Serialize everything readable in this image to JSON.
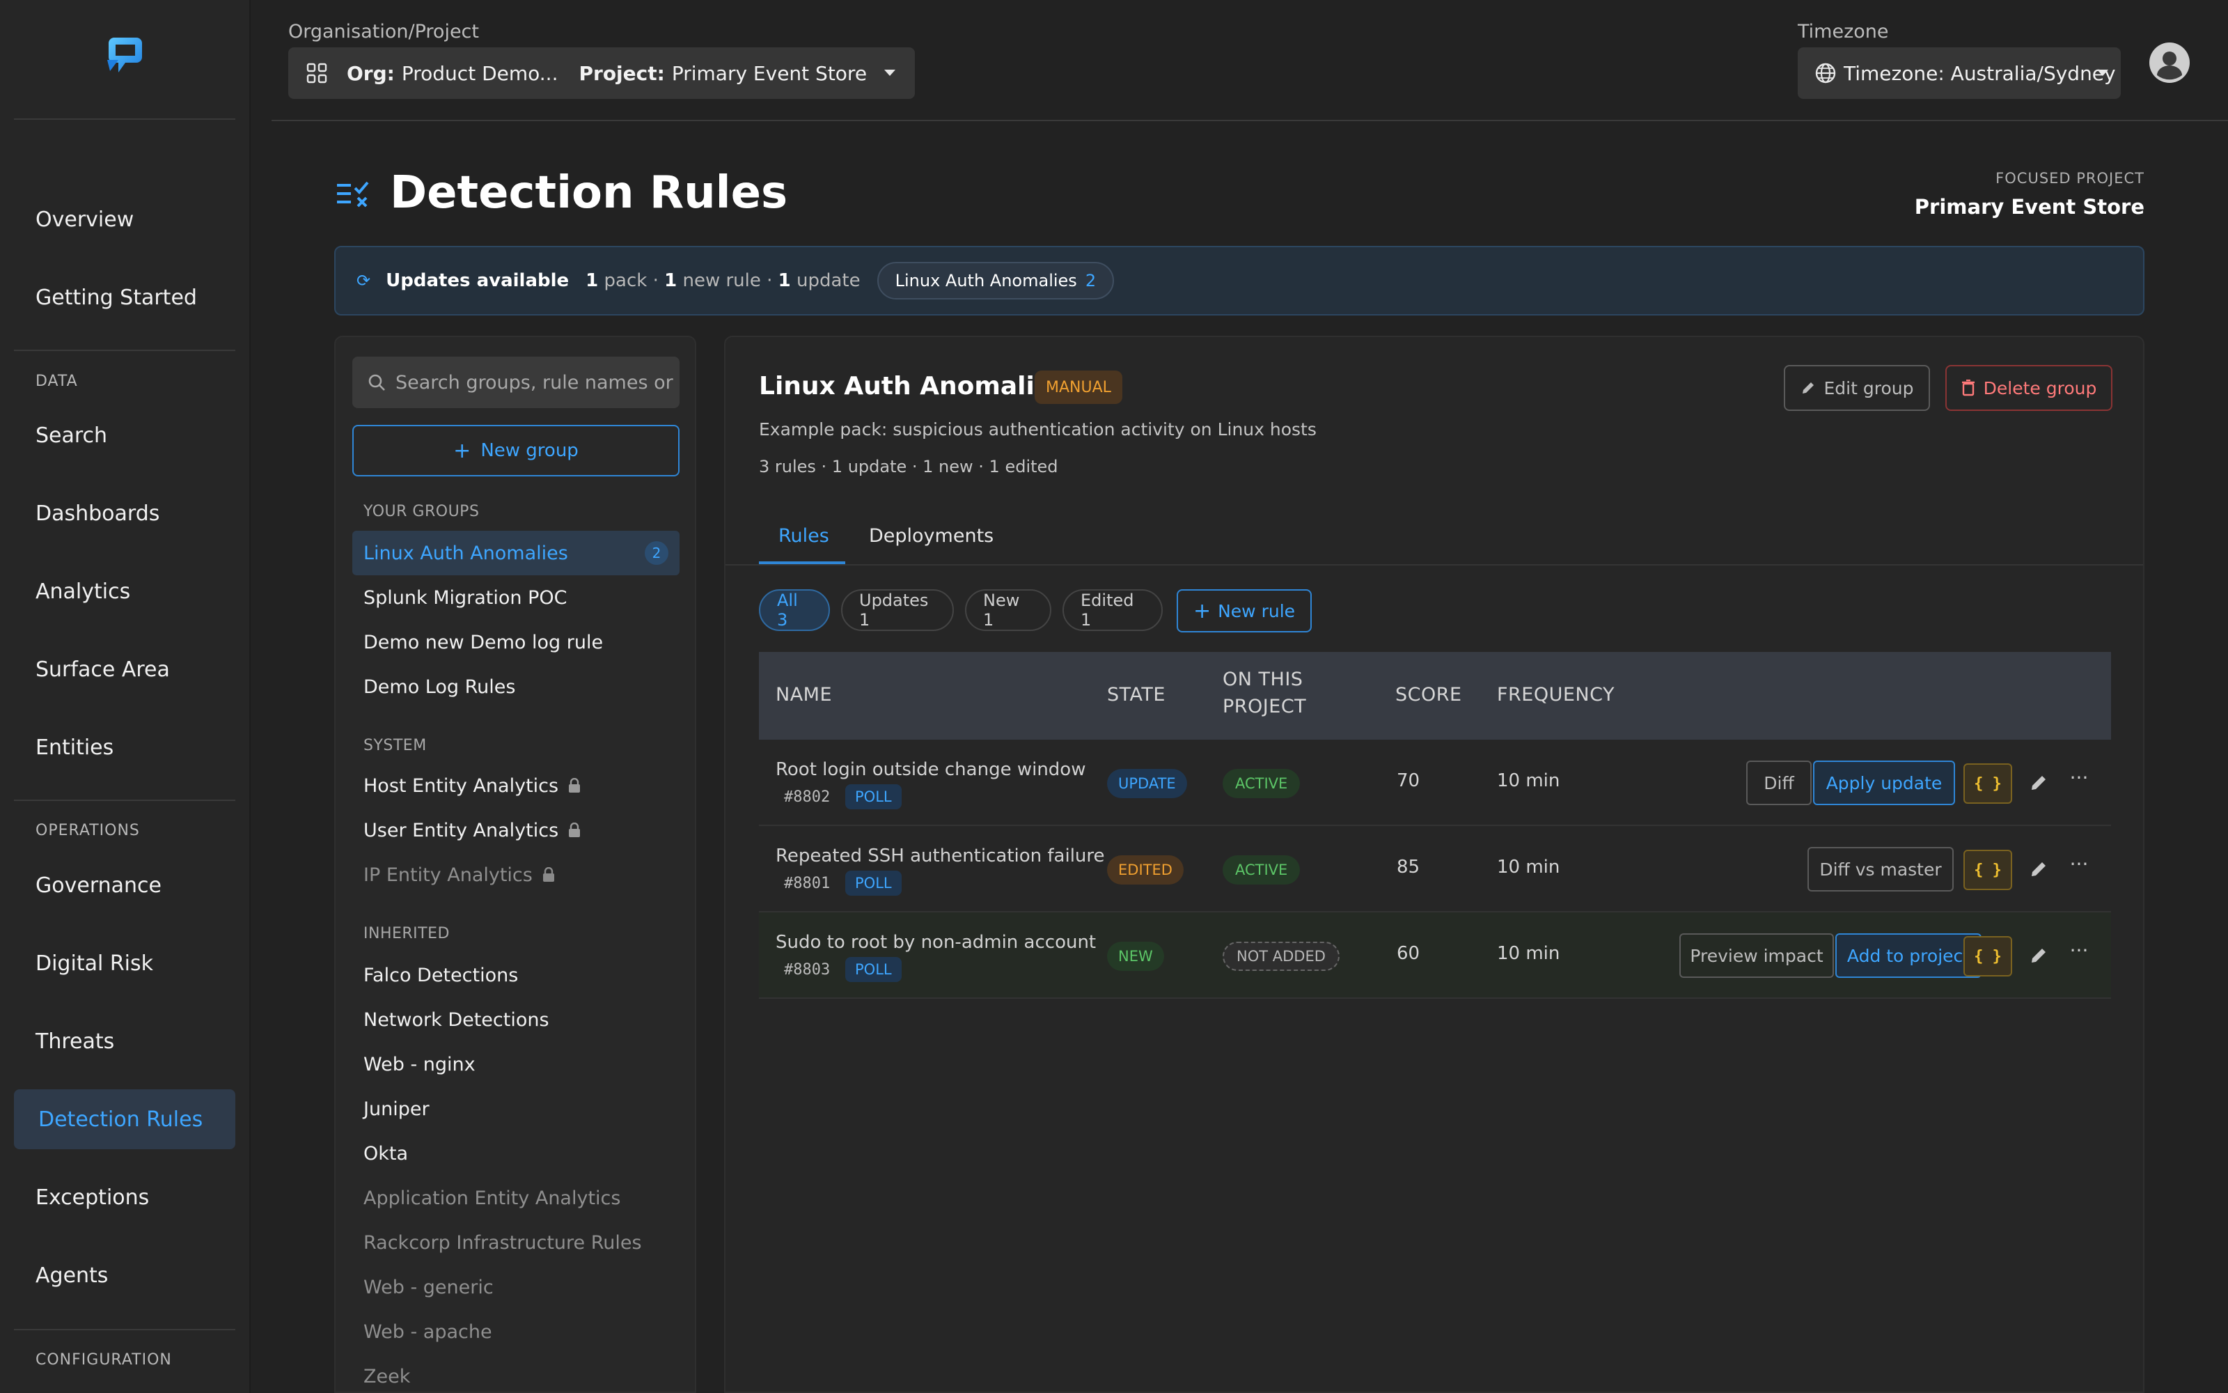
{
  "sidebar": {
    "items_top": [
      {
        "label": "Overview"
      },
      {
        "label": "Getting Started"
      }
    ],
    "data_section": "DATA",
    "data_items": [
      {
        "label": "Search"
      },
      {
        "label": "Dashboards"
      },
      {
        "label": "Analytics"
      },
      {
        "label": "Surface Area"
      },
      {
        "label": "Entities"
      }
    ],
    "operations_section": "OPERATIONS",
    "operations_items": [
      {
        "label": "Governance"
      },
      {
        "label": "Digital Risk"
      },
      {
        "label": "Threats"
      },
      {
        "label": "Detection Rules"
      },
      {
        "label": "Exceptions"
      },
      {
        "label": "Agents"
      }
    ],
    "configuration_section": "CONFIGURATION"
  },
  "header": {
    "org_project_label": "Organisation/Project",
    "org_prefix": "Org:",
    "org_value": "Product Demo...",
    "project_prefix": "Project:",
    "project_value": "Primary Event Store",
    "timezone_label": "Timezone",
    "timezone_value": "Timezone: Australia/Sydney"
  },
  "page": {
    "title": "Detection Rules",
    "focused_label": "FOCUSED PROJECT",
    "focused_value": "Primary Event Store"
  },
  "banner": {
    "title": "Updates available",
    "packs_num": "1",
    "packs_text": "pack ·",
    "new_num": "1",
    "new_text": "new rule ·",
    "update_num": "1",
    "update_text": "update",
    "chip_label": "Linux Auth Anomalies",
    "chip_count": "2"
  },
  "groups": {
    "search_placeholder": "Search groups, rule names or r",
    "new_group_label": "New group",
    "your_groups_label": "YOUR GROUPS",
    "your_groups": [
      {
        "label": "Linux Auth Anomalies",
        "badge": "2"
      },
      {
        "label": "Splunk Migration POC"
      },
      {
        "label": "Demo new Demo log rule"
      },
      {
        "label": "Demo Log Rules"
      }
    ],
    "system_label": "SYSTEM",
    "system": [
      {
        "label": "Host Entity Analytics"
      },
      {
        "label": "User Entity Analytics"
      },
      {
        "label": "IP Entity Analytics"
      }
    ],
    "inherited_label": "INHERITED",
    "inherited": [
      {
        "label": "Falco Detections"
      },
      {
        "label": "Network Detections"
      },
      {
        "label": "Web - nginx"
      },
      {
        "label": "Juniper"
      },
      {
        "label": "Okta"
      },
      {
        "label": "Application Entity Analytics"
      },
      {
        "label": "Rackcorp Infrastructure Rules"
      },
      {
        "label": "Web - generic"
      },
      {
        "label": "Web - apache"
      },
      {
        "label": "Zeek"
      }
    ]
  },
  "group_detail": {
    "title": "Linux Auth Anomalies",
    "badge": "MANUAL",
    "description": "Example pack: suspicious authentication activity on Linux hosts",
    "stats": "3 rules · 1 update · 1 new · 1 edited",
    "edit_label": "Edit group",
    "delete_label": "Delete group",
    "tabs": [
      {
        "label": "Rules"
      },
      {
        "label": "Deployments"
      }
    ],
    "filters": [
      {
        "label": "All 3"
      },
      {
        "label": "Updates 1"
      },
      {
        "label": "New 1"
      },
      {
        "label": "Edited 1"
      }
    ],
    "new_rule_label": "New rule"
  },
  "table": {
    "headers": {
      "name": "NAME",
      "state": "STATE",
      "on_project_1": "ON THIS",
      "on_project_2": "PROJECT",
      "score": "SCORE",
      "frequency": "FREQUENCY"
    },
    "rows": [
      {
        "name": "Root login outside change window",
        "id": "#8802",
        "type": "POLL",
        "state": "UPDATE",
        "project": "ACTIVE",
        "score": "70",
        "frequency": "10 min",
        "action_a": "Diff",
        "action_b": "Apply update",
        "json": "{ }"
      },
      {
        "name": "Repeated SSH authentication failure",
        "id": "#8801",
        "type": "POLL",
        "state": "EDITED",
        "project": "ACTIVE",
        "score": "85",
        "frequency": "10 min",
        "action_a": "Diff vs master",
        "json": "{ }"
      },
      {
        "name": "Sudo to root by non-admin account",
        "id": "#8803",
        "type": "POLL",
        "state": "NEW",
        "project": "NOT ADDED",
        "score": "60",
        "frequency": "10 min",
        "action_a": "Preview impact",
        "action_b": "Add to project",
        "json": "{ }"
      }
    ]
  },
  "colors": {
    "accent": "#3ea6ff",
    "background": "#222222",
    "warning": "#f0a030",
    "success": "#5cc567",
    "danger": "#ff7a7a"
  }
}
